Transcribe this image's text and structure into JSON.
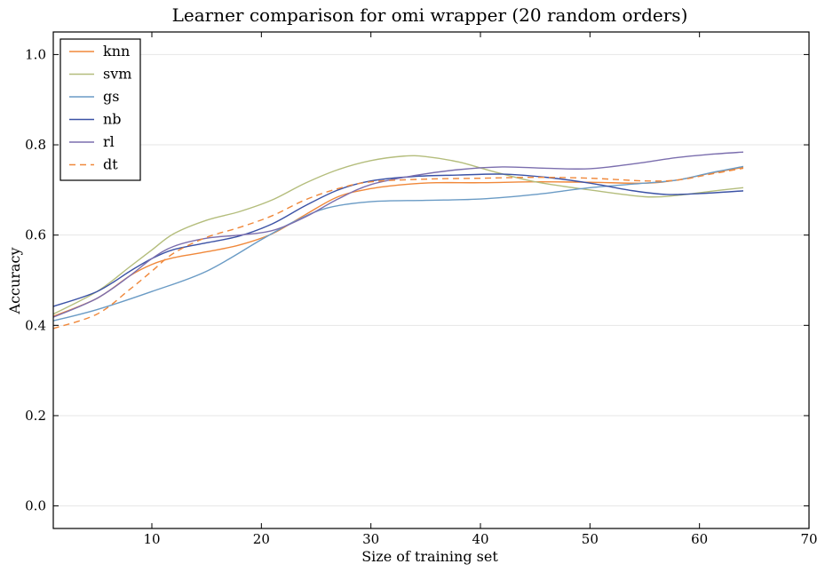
{
  "chart_data": {
    "type": "line",
    "title": "Learner comparison for omi wrapper (20 random orders)",
    "xlabel": "Size of training set",
    "ylabel": "Accuracy",
    "xlim": [
      1,
      70
    ],
    "ylim": [
      -0.05,
      1.05
    ],
    "xticks": [
      10,
      20,
      30,
      40,
      50,
      60,
      70
    ],
    "yticks": [
      0.0,
      0.2,
      0.4,
      0.6,
      0.8,
      1.0
    ],
    "xtick_labels": [
      "10",
      "20",
      "30",
      "40",
      "50",
      "60",
      "70"
    ],
    "ytick_labels": [
      "0.0",
      "0.2",
      "0.4",
      "0.6",
      "0.8",
      "1.0"
    ],
    "grid": "horizontal",
    "legend": "top-left",
    "series": [
      {
        "name": "knn",
        "color": "#f0883a",
        "dash": "solid",
        "x": [
          1,
          5,
          8,
          10,
          12,
          15,
          18,
          21,
          24,
          27,
          30,
          33,
          36,
          40,
          45,
          50,
          55,
          58,
          61,
          64
        ],
        "y": [
          0.42,
          0.46,
          0.51,
          0.535,
          0.55,
          0.563,
          0.578,
          0.603,
          0.645,
          0.685,
          0.703,
          0.712,
          0.716,
          0.716,
          0.718,
          0.717,
          0.715,
          0.722,
          0.737,
          0.75
        ]
      },
      {
        "name": "svm",
        "color": "#b4bd7c",
        "dash": "solid",
        "x": [
          1,
          5,
          8,
          10,
          12,
          15,
          18,
          21,
          24,
          27,
          30,
          33,
          35,
          38,
          41,
          45,
          50,
          55,
          58,
          61,
          64
        ],
        "y": [
          0.425,
          0.475,
          0.53,
          0.567,
          0.603,
          0.633,
          0.652,
          0.678,
          0.715,
          0.745,
          0.765,
          0.775,
          0.774,
          0.762,
          0.742,
          0.718,
          0.7,
          0.685,
          0.688,
          0.697,
          0.705
        ]
      },
      {
        "name": "gs",
        "color": "#6a9bc5",
        "dash": "solid",
        "x": [
          1,
          5,
          10,
          15,
          20,
          23,
          26,
          30,
          35,
          40,
          45,
          50,
          55,
          58,
          61,
          64
        ],
        "y": [
          0.41,
          0.435,
          0.475,
          0.52,
          0.59,
          0.63,
          0.66,
          0.674,
          0.677,
          0.68,
          0.69,
          0.705,
          0.715,
          0.722,
          0.738,
          0.752
        ]
      },
      {
        "name": "nb",
        "color": "#3b52a5",
        "dash": "solid",
        "x": [
          1,
          5,
          8,
          10,
          12,
          15,
          18,
          21,
          24,
          27,
          30,
          34,
          38,
          42,
          46,
          50,
          54,
          57,
          60,
          64
        ],
        "y": [
          0.442,
          0.475,
          0.52,
          0.548,
          0.568,
          0.583,
          0.598,
          0.625,
          0.665,
          0.7,
          0.72,
          0.73,
          0.733,
          0.735,
          0.728,
          0.715,
          0.698,
          0.69,
          0.692,
          0.698
        ]
      },
      {
        "name": "rl",
        "color": "#7b6eae",
        "dash": "solid",
        "x": [
          1,
          5,
          8,
          10,
          12,
          15,
          18,
          21,
          24,
          27,
          30,
          34,
          38,
          42,
          46,
          50,
          54,
          58,
          61,
          64
        ],
        "y": [
          0.418,
          0.46,
          0.51,
          0.548,
          0.575,
          0.593,
          0.6,
          0.61,
          0.64,
          0.68,
          0.712,
          0.732,
          0.745,
          0.751,
          0.748,
          0.747,
          0.758,
          0.772,
          0.779,
          0.784
        ]
      },
      {
        "name": "dt",
        "color": "#f0883a",
        "dash": "dashed",
        "x": [
          1,
          5,
          8,
          10,
          12,
          15,
          18,
          21,
          24,
          27,
          30,
          35,
          40,
          45,
          50,
          55,
          58,
          61,
          64
        ],
        "y": [
          0.393,
          0.425,
          0.48,
          0.52,
          0.56,
          0.595,
          0.617,
          0.643,
          0.678,
          0.703,
          0.718,
          0.724,
          0.726,
          0.728,
          0.726,
          0.72,
          0.722,
          0.735,
          0.748
        ]
      }
    ]
  }
}
